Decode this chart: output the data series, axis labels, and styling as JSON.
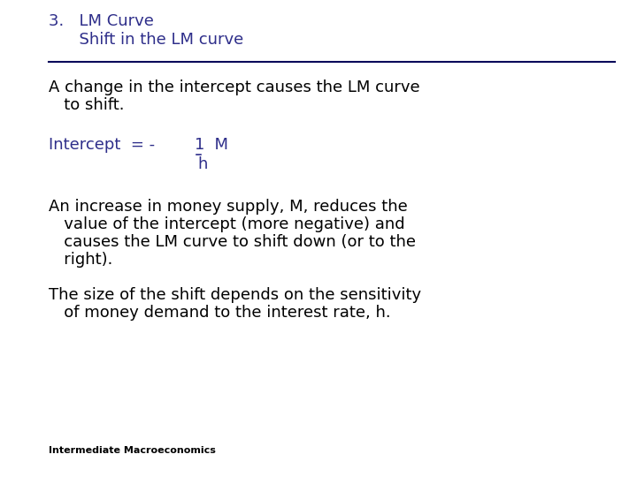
{
  "background_color": "#ffffff",
  "title_line1": "3.   LM Curve",
  "title_line2": "      Shift in the LM curve",
  "title_color": "#2e2e8a",
  "title_fontsize": 13,
  "separator_color": "#0a0a5a",
  "body_color": "#000000",
  "formula_color": "#2e2e8a",
  "body_fontsize": 13,
  "formula_fontsize": 13,
  "footer_text": "Intermediate Macroeconomics",
  "footer_fontsize": 8,
  "paragraph1_l1": "A change in the intercept causes the LM curve",
  "paragraph1_l2": "   to shift.",
  "formula_prefix": "Intercept  = - ",
  "formula_num": "1",
  "formula_suffix": "  M",
  "formula_denom": "h",
  "paragraph2_l1": "An increase in money supply, M, reduces the",
  "paragraph2_l2": "   value of the intercept (more negative) and",
  "paragraph2_l3": "   causes the LM curve to shift down (or to the",
  "paragraph2_l4": "   right).",
  "paragraph3_l1": "The size of the shift depends on the sensitivity",
  "paragraph3_l2": "   of money demand to the interest rate, h."
}
